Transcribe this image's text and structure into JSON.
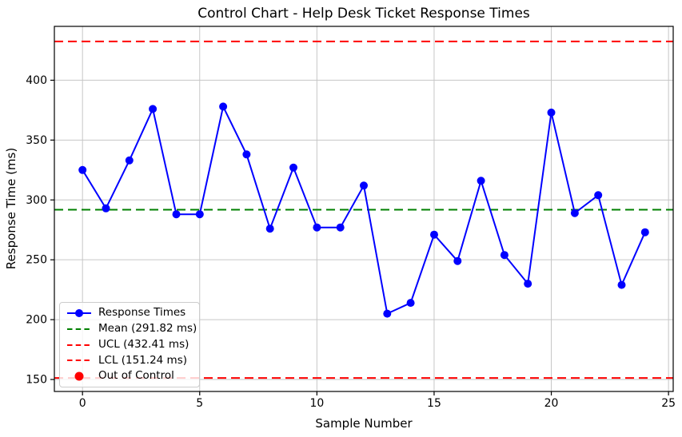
{
  "figure": {
    "title": "Control Chart - Help Desk Ticket Response Times",
    "xlabel": "Sample Number",
    "ylabel": "Response Time (ms)"
  },
  "legend": {
    "items": [
      {
        "key": "response-times",
        "label": "Response Times",
        "type": "line-marker",
        "color": "#0000ff"
      },
      {
        "key": "mean",
        "label": "Mean (291.82 ms)",
        "type": "dashed",
        "color": "#008000"
      },
      {
        "key": "ucl",
        "label": "UCL (432.41 ms)",
        "type": "dashed",
        "color": "#ff0000"
      },
      {
        "key": "lcl",
        "label": "LCL (151.24 ms)",
        "type": "dashed",
        "color": "#ff0000"
      },
      {
        "key": "out-of-control",
        "label": "Out of Control",
        "type": "marker",
        "color": "#ff0000"
      }
    ]
  },
  "chart_data": {
    "type": "line",
    "title": "Control Chart - Help Desk Ticket Response Times",
    "xlabel": "Sample Number",
    "ylabel": "Response Time (ms)",
    "x": [
      0,
      1,
      2,
      3,
      4,
      5,
      6,
      7,
      8,
      9,
      10,
      11,
      12,
      13,
      14,
      15,
      16,
      17,
      18,
      19,
      20,
      21,
      22,
      23,
      24
    ],
    "series": [
      {
        "name": "Response Times",
        "color": "#0000ff",
        "values": [
          325,
          293,
          333,
          376,
          288,
          288,
          378,
          338,
          276,
          327,
          277,
          277,
          312,
          205,
          214,
          271,
          249,
          316,
          254,
          230,
          373,
          289,
          304,
          229,
          273
        ]
      }
    ],
    "reference_lines": [
      {
        "name": "Mean",
        "label": "Mean (291.82 ms)",
        "value": 291.82,
        "color": "#008000",
        "style": "dashed"
      },
      {
        "name": "UCL",
        "label": "UCL (432.41 ms)",
        "value": 432.41,
        "color": "#ff0000",
        "style": "dashed"
      },
      {
        "name": "LCL",
        "label": "LCL (151.24 ms)",
        "value": 151.24,
        "color": "#ff0000",
        "style": "dashed"
      }
    ],
    "out_of_control_points": [],
    "xlim": [
      -1.2,
      25.2
    ],
    "ylim": [
      140,
      445
    ],
    "xticks": [
      0,
      5,
      10,
      15,
      20,
      25
    ],
    "yticks": [
      150,
      200,
      250,
      300,
      350,
      400
    ],
    "grid": true,
    "legend_position": "lower left",
    "colors": {
      "series": "#0000ff",
      "mean": "#008000",
      "limits": "#ff0000",
      "grid": "#c6c6c6",
      "spine": "#000000",
      "out_of_control": "#ff0000"
    }
  }
}
